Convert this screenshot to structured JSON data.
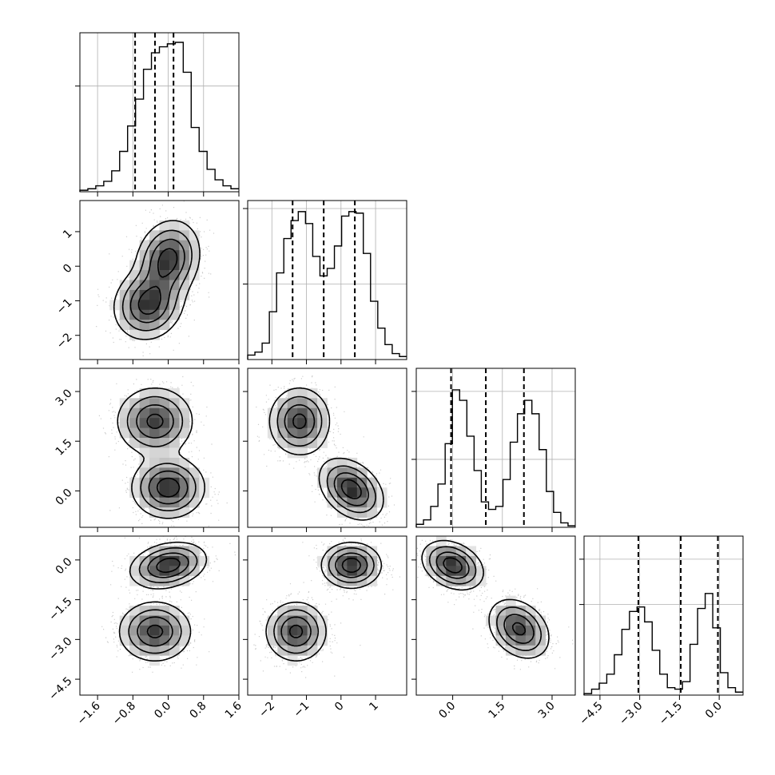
{
  "chart_data": {
    "type": "corner",
    "parameters": [
      {
        "range": [
          -2.0,
          1.6
        ],
        "ticks": [
          -1.6,
          -0.8,
          0.0,
          0.8,
          1.6
        ],
        "tick_labels": [
          "−1.6",
          "−0.8",
          "0.0",
          "0.8",
          "1.6"
        ],
        "quantiles": [
          -0.75,
          -0.3,
          0.12
        ],
        "histogram": [
          0.01,
          0.02,
          0.04,
          0.07,
          0.14,
          0.27,
          0.44,
          0.62,
          0.82,
          0.93,
          0.97,
          0.99,
          1.0,
          0.8,
          0.43,
          0.27,
          0.15,
          0.08,
          0.04,
          0.02
        ]
      },
      {
        "range": [
          -2.7,
          1.9
        ],
        "ticks": [
          -2,
          -1,
          0,
          1
        ],
        "tick_labels": [
          "−2",
          "−1",
          "0",
          "1"
        ],
        "quantiles": [
          -1.4,
          -0.5,
          0.4
        ],
        "histogram": [
          0.03,
          0.05,
          0.11,
          0.32,
          0.58,
          0.81,
          0.93,
          0.99,
          0.91,
          0.69,
          0.56,
          0.61,
          0.76,
          0.96,
          0.99,
          0.98,
          0.71,
          0.39,
          0.21,
          0.1,
          0.04,
          0.02
        ]
      },
      {
        "range": [
          -1.1,
          3.7
        ],
        "ticks": [
          0.0,
          1.5,
          3.0
        ],
        "tick_labels": [
          "0.0",
          "1.5",
          "3.0"
        ],
        "quantiles": [
          -0.05,
          1.0,
          2.15
        ],
        "histogram": [
          0.02,
          0.05,
          0.14,
          0.29,
          0.56,
          0.92,
          0.85,
          0.61,
          0.38,
          0.17,
          0.12,
          0.14,
          0.32,
          0.57,
          0.76,
          0.85,
          0.76,
          0.52,
          0.24,
          0.1,
          0.03,
          0.01
        ]
      },
      {
        "range": [
          -5.1,
          0.9
        ],
        "ticks": [
          -4.5,
          -3.0,
          -1.5,
          0.0
        ],
        "tick_labels": [
          "−4.5",
          "−3.0",
          "−1.5",
          "0.0"
        ],
        "quantiles": [
          -3.05,
          -1.45,
          -0.05
        ],
        "histogram": [
          0.01,
          0.04,
          0.08,
          0.14,
          0.27,
          0.44,
          0.56,
          0.59,
          0.49,
          0.3,
          0.14,
          0.05,
          0.04,
          0.09,
          0.34,
          0.58,
          0.68,
          0.45,
          0.15,
          0.05,
          0.02
        ]
      }
    ],
    "hist_grid": [
      [
        0.7
      ],
      [
        0.5,
        1.0
      ],
      [
        0.45,
        0.9
      ],
      [
        0.6,
        0.9
      ]
    ],
    "contour_levels": [
      0.12,
      0.3,
      0.55,
      0.82
    ],
    "pairs": [
      {
        "row": 1,
        "col": 0,
        "clusters": [
          {
            "mean": [
              0.0,
              0.2
            ],
            "sigma": [
              0.35,
              0.55
            ],
            "rho": 0.15,
            "weight": 1.0
          },
          {
            "mean": [
              -0.45,
              -1.1
            ],
            "sigma": [
              0.38,
              0.5
            ],
            "rho": 0.1,
            "weight": 1.0
          }
        ]
      },
      {
        "row": 2,
        "col": 0,
        "clusters": [
          {
            "mean": [
              -0.3,
              2.1
            ],
            "sigma": [
              0.42,
              0.5
            ],
            "rho": 0.0,
            "weight": 0.9
          },
          {
            "mean": [
              0.0,
              0.1
            ],
            "sigma": [
              0.4,
              0.45
            ],
            "rho": 0.0,
            "weight": 1.0
          }
        ]
      },
      {
        "row": 2,
        "col": 1,
        "clusters": [
          {
            "mean": [
              -1.2,
              2.1
            ],
            "sigma": [
              0.43,
              0.5
            ],
            "rho": 0.0,
            "weight": 0.9
          },
          {
            "mean": [
              0.3,
              0.05
            ],
            "sigma": [
              0.45,
              0.45
            ],
            "rho": -0.35,
            "weight": 1.0
          }
        ]
      },
      {
        "row": 3,
        "col": 0,
        "clusters": [
          {
            "mean": [
              0.0,
              -0.2
            ],
            "sigma": [
              0.42,
              0.42
            ],
            "rho": 0.25,
            "weight": 1.0
          },
          {
            "mean": [
              -0.3,
              -2.7
            ],
            "sigma": [
              0.4,
              0.55
            ],
            "rho": 0.0,
            "weight": 0.9
          }
        ]
      },
      {
        "row": 3,
        "col": 1,
        "clusters": [
          {
            "mean": [
              0.3,
              -0.2
            ],
            "sigma": [
              0.42,
              0.42
            ],
            "rho": 0.0,
            "weight": 1.0
          },
          {
            "mean": [
              -1.3,
              -2.7
            ],
            "sigma": [
              0.43,
              0.55
            ],
            "rho": 0.0,
            "weight": 0.9
          }
        ]
      },
      {
        "row": 3,
        "col": 2,
        "clusters": [
          {
            "mean": [
              0.0,
              -0.2
            ],
            "sigma": [
              0.45,
              0.45
            ],
            "rho": -0.3,
            "weight": 1.0
          },
          {
            "mean": [
              2.0,
              -2.6
            ],
            "sigma": [
              0.45,
              0.55
            ],
            "rho": -0.3,
            "weight": 0.9
          }
        ]
      }
    ]
  }
}
